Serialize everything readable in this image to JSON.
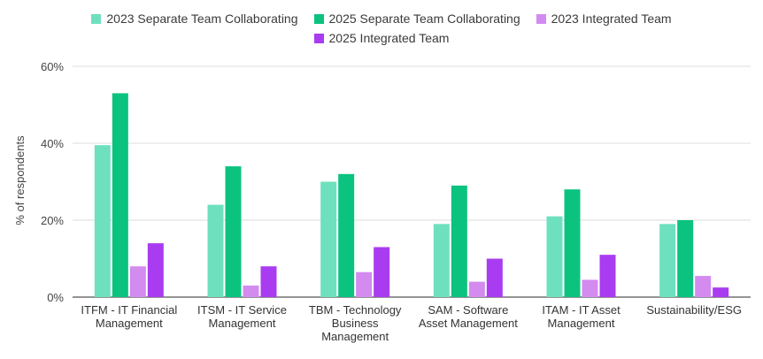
{
  "chart_data": {
    "type": "bar",
    "title": "",
    "xlabel": "",
    "ylabel": "% of respondents",
    "ylim": [
      0,
      60
    ],
    "yticks": [
      "0%",
      "20%",
      "40%",
      "60%"
    ],
    "ytick_values": [
      0,
      20,
      40,
      60
    ],
    "legend_position": "top",
    "categories": [
      [
        "ITFM - IT Financial",
        "Management"
      ],
      [
        "ITSM - IT Service",
        "Management"
      ],
      [
        "TBM - Technology",
        "Business",
        "Management"
      ],
      [
        "SAM - Software",
        "Asset Management"
      ],
      [
        "ITAM - IT Asset",
        "Management"
      ],
      [
        "Sustainability/ESG"
      ]
    ],
    "series": [
      {
        "name": "2023 Separate Team Collaborating",
        "color": "#6ee0bd",
        "values": [
          39.5,
          24,
          30,
          19,
          21,
          19
        ]
      },
      {
        "name": "2025 Separate Team Collaborating",
        "color": "#0bc37f",
        "values": [
          53,
          34,
          32,
          29,
          28,
          20
        ]
      },
      {
        "name": "2023 Integrated Team",
        "color": "#d38bf0",
        "values": [
          8,
          3,
          6.5,
          4,
          4.5,
          5.5
        ]
      },
      {
        "name": "2025 Integrated Team",
        "color": "#a93cf0",
        "values": [
          14,
          8,
          13,
          10,
          11,
          2.5
        ]
      }
    ]
  }
}
